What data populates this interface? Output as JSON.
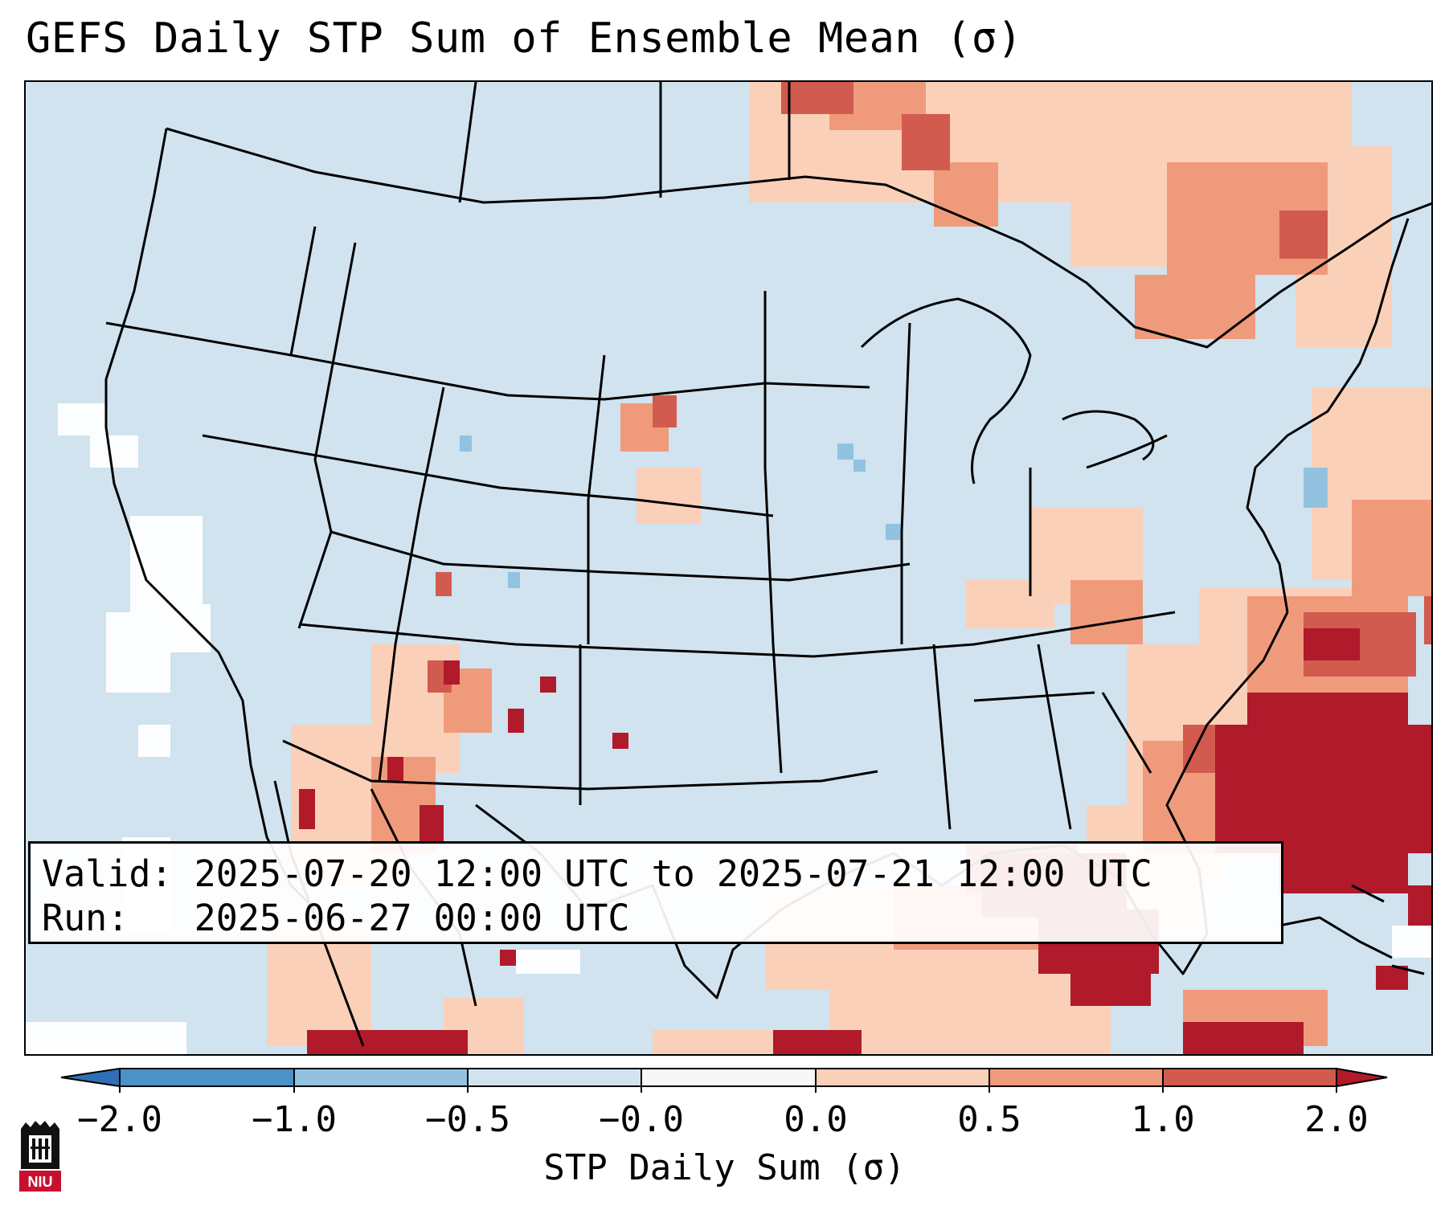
{
  "title": "GEFS Daily STP Sum of Ensemble Mean (σ)",
  "info": {
    "valid_label": "Valid:",
    "valid_value": "2025-07-20 12:00 UTC to 2025-07-21 12:00 UTC",
    "run_label": "Run:",
    "run_value": "2025-06-27 00:00 UTC"
  },
  "colorbar": {
    "label": "STP Daily Sum (σ)",
    "ticks": [
      "−2.0",
      "−1.0",
      "−0.5",
      "−0.0",
      "0.0",
      "0.5",
      "1.0",
      "2.0"
    ],
    "colors": [
      "#2f6fb4",
      "#4a92c7",
      "#93c2e0",
      "#d0e3ef",
      "#f7f7f7",
      "#fbd0b9",
      "#f09a7c",
      "#d15b4e",
      "#b01a2b"
    ]
  },
  "logo": {
    "text": "NIU"
  }
}
